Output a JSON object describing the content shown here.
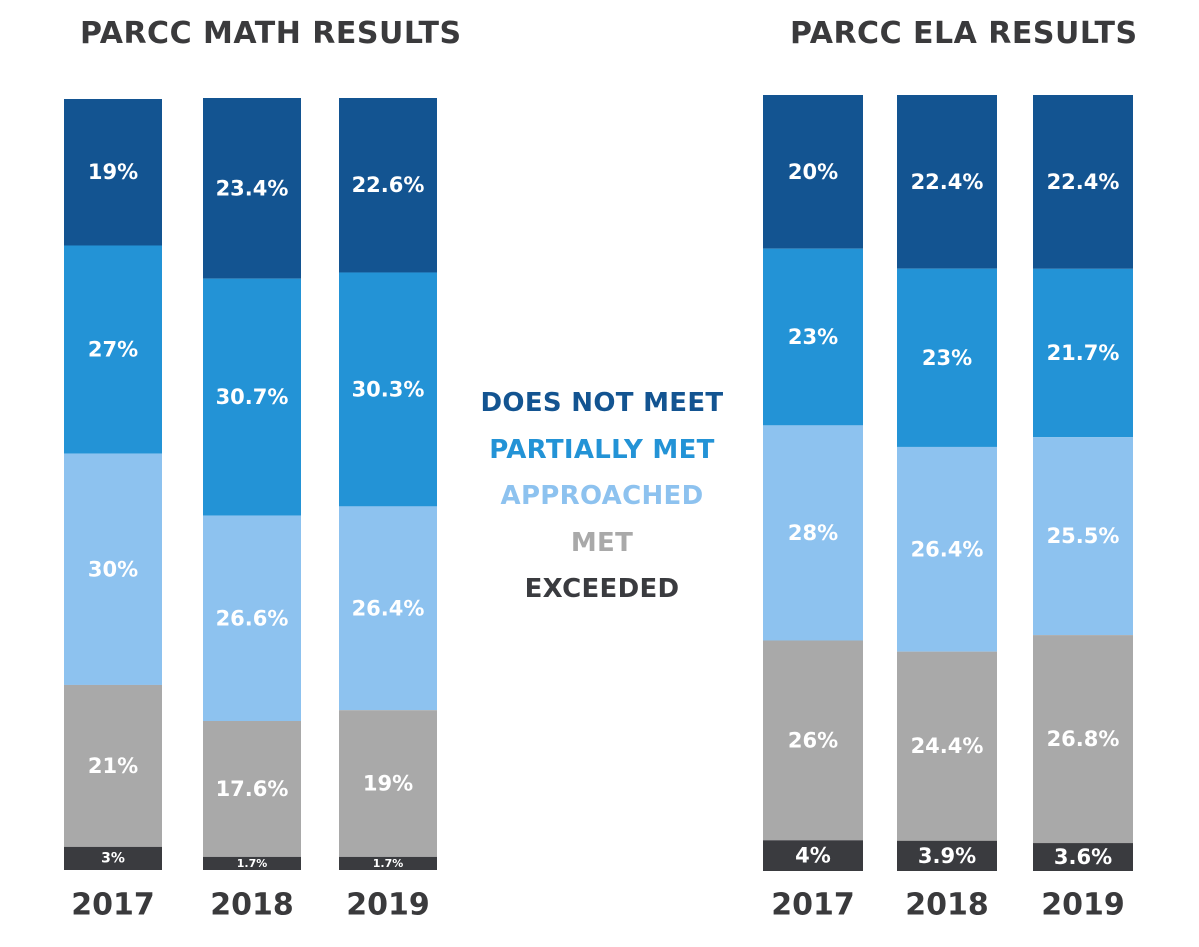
{
  "colors": {
    "does_not_meet": "#135491",
    "partially_met": "#2393d6",
    "approached": "#8dc2ef",
    "met": "#a9a9a9",
    "exceeded": "#3a3b3f",
    "title": "#3a3a3c",
    "segment_text": "#ffffff"
  },
  "legend": {
    "items": [
      {
        "label": "DOES NOT MEET",
        "color": "#135491"
      },
      {
        "label": "PARTIALLY MET",
        "color": "#2393d6"
      },
      {
        "label": "APPROACHED",
        "color": "#8dc2ef"
      },
      {
        "label": "MET",
        "color": "#a9a9a9"
      },
      {
        "label": "EXCEEDED",
        "color": "#3a3b3f"
      }
    ]
  },
  "chart_data": [
    {
      "type": "bar",
      "stacked": true,
      "title": "PARCC MATH RESULTS",
      "categories": [
        "2017",
        "2018",
        "2019"
      ],
      "series": [
        {
          "name": "DOES NOT MEET",
          "values": [
            19,
            23.4,
            22.6
          ],
          "labels": [
            "19%",
            "23.4%",
            "22.6%"
          ]
        },
        {
          "name": "PARTIALLY MET",
          "values": [
            27,
            30.7,
            30.3
          ],
          "labels": [
            "27%",
            "30.7%",
            "30.3%"
          ]
        },
        {
          "name": "APPROACHED",
          "values": [
            30,
            26.6,
            26.4
          ],
          "labels": [
            "30%",
            "26.6%",
            "26.4%"
          ]
        },
        {
          "name": "MET",
          "values": [
            21,
            17.6,
            19
          ],
          "labels": [
            "21%",
            "17.6%",
            "19%"
          ]
        },
        {
          "name": "EXCEEDED",
          "values": [
            3,
            1.7,
            1.7
          ],
          "labels": [
            "3%",
            "1.7%",
            "1.7%"
          ]
        }
      ]
    },
    {
      "type": "bar",
      "stacked": true,
      "title": "PARCC ELA RESULTS",
      "categories": [
        "2017",
        "2018",
        "2019"
      ],
      "series": [
        {
          "name": "DOES NOT MEET",
          "values": [
            20,
            22.4,
            22.4
          ],
          "labels": [
            "20%",
            "22.4%",
            "22.4%"
          ]
        },
        {
          "name": "PARTIALLY MET",
          "values": [
            23,
            23,
            21.7
          ],
          "labels": [
            "23%",
            "23%",
            "21.7%"
          ]
        },
        {
          "name": "APPROACHED",
          "values": [
            28,
            26.4,
            25.5
          ],
          "labels": [
            "28%",
            "26.4%",
            "25.5%"
          ]
        },
        {
          "name": "MET",
          "values": [
            26,
            24.4,
            26.8
          ],
          "labels": [
            "26%",
            "24.4%",
            "26.8%"
          ]
        },
        {
          "name": "EXCEEDED",
          "values": [
            4,
            3.9,
            3.6
          ],
          "labels": [
            "4%",
            "3.9%",
            "3.6%"
          ]
        }
      ]
    }
  ]
}
